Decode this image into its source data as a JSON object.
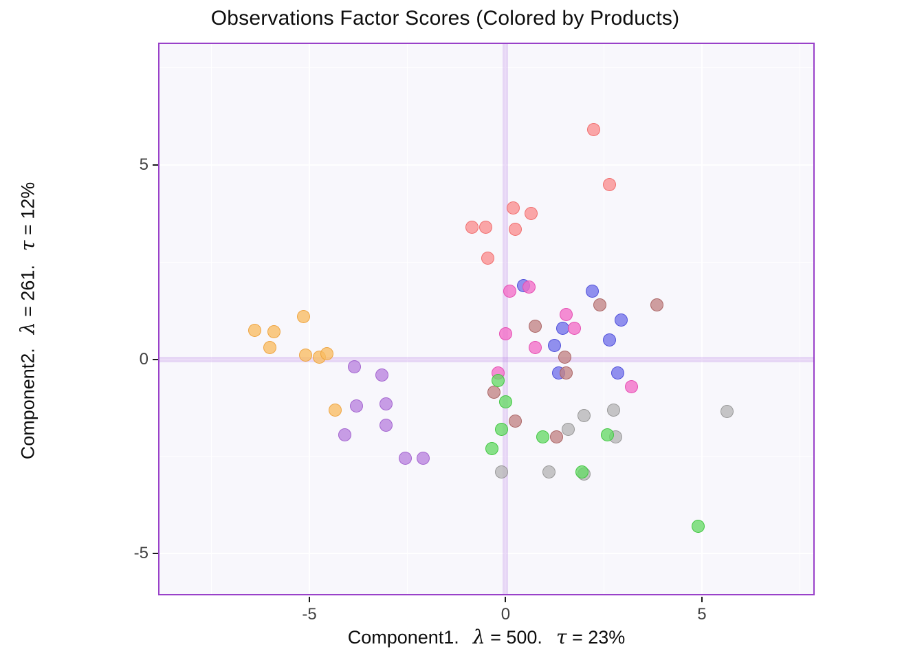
{
  "chart_data": {
    "type": "scatter",
    "title": "Observations Factor Scores (Colored by Products)",
    "xlabel_parts": {
      "name": "Component1.",
      "lambda_sym": "λ",
      "lambda_eq": " = 500.",
      "tau_sym": "τ",
      "tau_eq": " = 23%"
    },
    "ylabel_parts": {
      "name": "Component2.",
      "lambda_sym": "λ",
      "lambda_eq": " = 261.",
      "tau_sym": "τ",
      "tau_eq": " = 12%"
    },
    "xlim": [
      -8.82,
      7.84
    ],
    "ylim": [
      -6.04,
      8.11
    ],
    "x_ticks": [
      -5,
      0,
      5
    ],
    "y_ticks": [
      -5,
      0,
      5
    ],
    "x_minor_ticks": [
      -7.5,
      -2.5,
      2.5,
      7.5
    ],
    "y_minor_ticks": [
      -2.5,
      2.5,
      7.5
    ],
    "origin_lines": {
      "x": 0,
      "y": 0,
      "color": "rgba(188,140,228,0.30)"
    },
    "panel_background": "#f8f7fc",
    "panel_border_color": "#9941c9",
    "gridline_color": "#ffffff",
    "point_alpha": 0.78,
    "series": [
      {
        "name": "product-red",
        "color": "#fa8e8e",
        "stroke": "#ef6a6a",
        "points": [
          [
            2.25,
            5.9
          ],
          [
            2.65,
            4.5
          ],
          [
            0.2,
            3.9
          ],
          [
            0.65,
            3.75
          ],
          [
            -0.85,
            3.4
          ],
          [
            -0.5,
            3.4
          ],
          [
            0.25,
            3.35
          ],
          [
            -0.45,
            2.6
          ]
        ]
      },
      {
        "name": "product-orange",
        "color": "#f8bd62",
        "stroke": "#eda23e",
        "points": [
          [
            -6.4,
            0.75
          ],
          [
            -5.9,
            0.7
          ],
          [
            -5.15,
            1.1
          ],
          [
            -6.0,
            0.3
          ],
          [
            -5.1,
            0.1
          ],
          [
            -4.75,
            0.05
          ],
          [
            -4.55,
            0.15
          ],
          [
            -4.35,
            -1.3
          ]
        ]
      },
      {
        "name": "product-purple",
        "color": "#b983de",
        "stroke": "#a161ce",
        "points": [
          [
            -3.85,
            -0.2
          ],
          [
            -3.15,
            -0.4
          ],
          [
            -3.8,
            -1.2
          ],
          [
            -3.05,
            -1.15
          ],
          [
            -3.05,
            -1.7
          ],
          [
            -4.1,
            -1.95
          ],
          [
            -2.55,
            -2.55
          ],
          [
            -2.1,
            -2.55
          ]
        ]
      },
      {
        "name": "product-gray",
        "color": "#b6b6b6",
        "stroke": "#969696",
        "points": [
          [
            1.6,
            -1.8
          ],
          [
            2.0,
            -1.45
          ],
          [
            2.75,
            -1.3
          ],
          [
            2.8,
            -2.0
          ],
          [
            -0.1,
            -2.9
          ],
          [
            1.1,
            -2.9
          ],
          [
            2.0,
            -2.95
          ],
          [
            5.65,
            -1.35
          ]
        ]
      },
      {
        "name": "product-blue",
        "color": "#7272e9",
        "stroke": "#4d4dd8",
        "points": [
          [
            0.45,
            1.9
          ],
          [
            2.2,
            1.75
          ],
          [
            1.25,
            0.35
          ],
          [
            1.45,
            0.8
          ],
          [
            2.95,
            1.0
          ],
          [
            2.65,
            0.5
          ],
          [
            1.35,
            -0.35
          ],
          [
            2.85,
            -0.35
          ]
        ]
      },
      {
        "name": "product-pink",
        "color": "#f26ec6",
        "stroke": "#e44bb0",
        "points": [
          [
            0.1,
            1.75
          ],
          [
            0.6,
            1.85
          ],
          [
            1.55,
            1.15
          ],
          [
            0.0,
            0.65
          ],
          [
            0.75,
            0.3
          ],
          [
            1.75,
            0.8
          ],
          [
            -0.2,
            -0.35
          ],
          [
            3.2,
            -0.7
          ]
        ]
      },
      {
        "name": "product-brown",
        "color": "#c28484",
        "stroke": "#a96262",
        "points": [
          [
            2.4,
            1.4
          ],
          [
            3.85,
            1.4
          ],
          [
            0.75,
            0.85
          ],
          [
            1.5,
            0.05
          ],
          [
            1.55,
            -0.35
          ],
          [
            -0.3,
            -0.85
          ],
          [
            0.25,
            -1.6
          ],
          [
            1.3,
            -2.0
          ]
        ]
      },
      {
        "name": "product-green",
        "color": "#67da67",
        "stroke": "#3ec43e",
        "points": [
          [
            -0.2,
            -0.55
          ],
          [
            0.0,
            -1.1
          ],
          [
            -0.1,
            -1.8
          ],
          [
            -0.35,
            -2.3
          ],
          [
            0.95,
            -2.0
          ],
          [
            2.6,
            -1.95
          ],
          [
            1.95,
            -2.9
          ],
          [
            4.9,
            -4.3
          ]
        ]
      }
    ]
  }
}
